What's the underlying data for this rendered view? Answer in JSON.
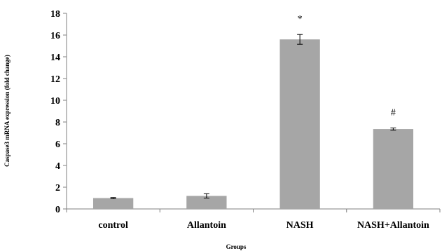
{
  "chart_data": {
    "type": "bar",
    "title": "",
    "xlabel": "Groups",
    "ylabel": "Caspase3 mRNA expression (fold change)",
    "categories": [
      "control",
      "Allantoin",
      "NASH",
      "NASH+Allantoin"
    ],
    "values": [
      1.0,
      1.2,
      15.6,
      7.35
    ],
    "errors": [
      0.05,
      0.2,
      0.45,
      0.1
    ],
    "annotations": [
      "",
      "",
      "*",
      "#"
    ],
    "ylim": [
      0,
      18
    ],
    "yticks": [
      "0",
      "2",
      "4",
      "6",
      "8",
      "10",
      "12",
      "14",
      "16",
      "18"
    ],
    "grid": false,
    "legend": "none",
    "bar_color": "#a6a6a6",
    "axis_color": "#7f7f7f"
  }
}
